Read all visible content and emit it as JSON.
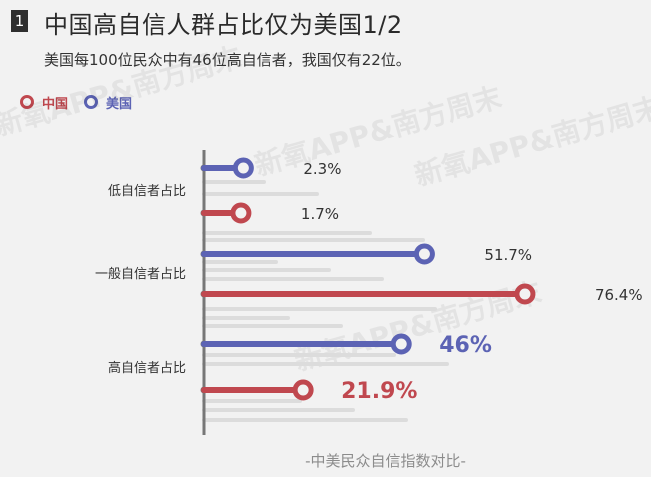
{
  "header": {
    "number": "1",
    "title": "中国高自信人群占比仅为美国1/2",
    "subtitle": "美国每100位民众中有46位高自信者，我国仅有22位。"
  },
  "legend": [
    {
      "name": "中国",
      "color": "#c0484f"
    },
    {
      "name": "美国",
      "color": "#5c63b4"
    }
  ],
  "watermark": "新氧APP&南方周末",
  "footer": "-中美民众自信指数对比-",
  "colors": {
    "china": "#c0484f",
    "usa": "#5c63b4",
    "axis": "#777777",
    "ghost": "#dcdcdc"
  },
  "chart_data": {
    "type": "bar",
    "orientation": "horizontal",
    "categories": [
      "低自信者占比",
      "一般自信者占比",
      "高自信者占比"
    ],
    "series": [
      {
        "name": "美国",
        "values": [
          2.3,
          51.7,
          46
        ],
        "labels": [
          "2.3%",
          "51.7%",
          "46%"
        ]
      },
      {
        "name": "中国",
        "values": [
          1.7,
          76.4,
          21.9
        ],
        "labels": [
          "1.7%",
          "76.4%",
          "21.9%"
        ]
      }
    ],
    "highlight_category": "高自信者占比",
    "grid": false
  }
}
